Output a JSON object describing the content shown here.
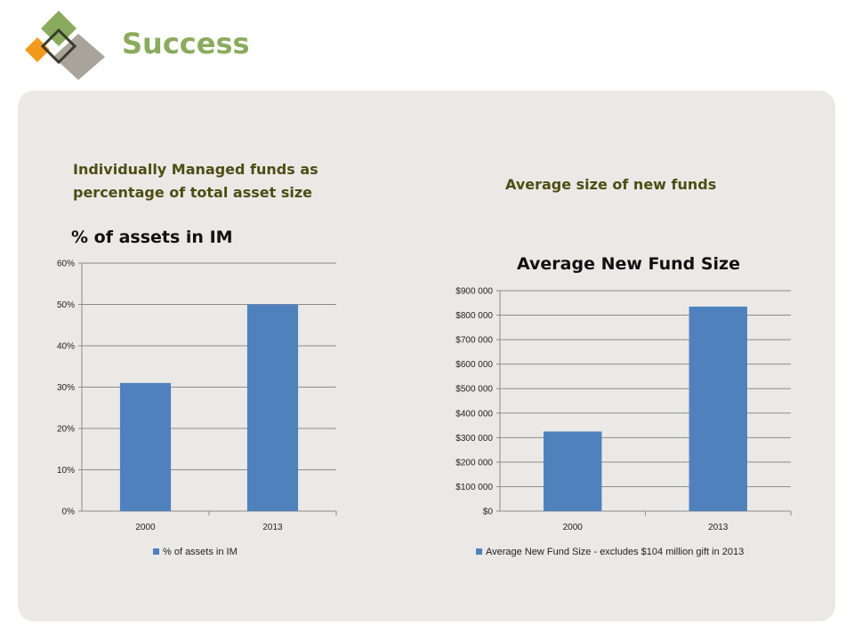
{
  "slide": {
    "title": "Success",
    "left_heading": "Individually Managed funds as percentage of total asset size",
    "right_heading": "Average size of new funds"
  },
  "colors": {
    "title": "#8aab5d",
    "heading": "#4d4d14",
    "bar": "#4f81bd",
    "panel": "#ebe9e6",
    "logo_green": "#8aab5d",
    "logo_orange": "#f39a1e",
    "logo_gray": "#a8a49a"
  },
  "chart_data": [
    {
      "type": "bar",
      "title": "% of assets in IM",
      "categories": [
        "2000",
        "2013"
      ],
      "series": [
        {
          "name": "% of assets in IM",
          "values": [
            0.31,
            0.5
          ]
        }
      ],
      "ylim": [
        0,
        0.6
      ],
      "yticks": [
        0,
        0.1,
        0.2,
        0.3,
        0.4,
        0.5,
        0.6
      ],
      "ytick_labels": [
        "0%",
        "10%",
        "20%",
        "30%",
        "40%",
        "50%",
        "60%"
      ],
      "grid": true,
      "legend": "bottom"
    },
    {
      "type": "bar",
      "title": "Average New Fund Size",
      "categories": [
        "2000",
        "2013"
      ],
      "series": [
        {
          "name": "Average New Fund Size - excludes $104 million gift in 2013",
          "values": [
            325000,
            835000
          ]
        }
      ],
      "ylim": [
        0,
        900000
      ],
      "yticks": [
        0,
        100000,
        200000,
        300000,
        400000,
        500000,
        600000,
        700000,
        800000,
        900000
      ],
      "ytick_labels": [
        "$0",
        "$100 000",
        "$200 000",
        "$300 000",
        "$400 000",
        "$500 000",
        "$600 000",
        "$700 000",
        "$800 000",
        "$900 000"
      ],
      "grid": true,
      "legend": "bottom"
    }
  ]
}
